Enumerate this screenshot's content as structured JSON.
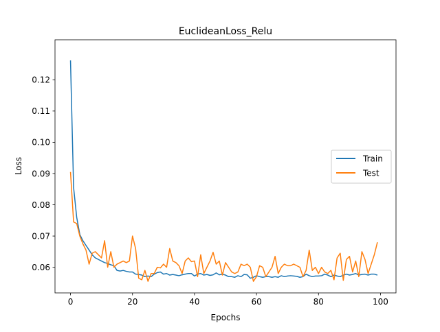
{
  "chart_data": {
    "type": "line",
    "title": "EuclideanLoss_Relu",
    "xlabel": "Epochs",
    "ylabel": "Loss",
    "xlim": [
      -5,
      105
    ],
    "ylim": [
      0.0518,
      0.1328
    ],
    "xticks": [
      0,
      20,
      40,
      60,
      80,
      100
    ],
    "yticks": [
      0.06,
      0.07,
      0.08,
      0.09,
      0.1,
      0.11,
      0.12
    ],
    "ytick_labels": [
      "0.06",
      "0.07",
      "0.08",
      "0.09",
      "0.10",
      "0.11",
      "0.12"
    ],
    "grid": false,
    "legend": {
      "position": "center-right"
    },
    "series": [
      {
        "name": "Train",
        "color": "#1f77b4",
        "values": [
          0.1262,
          0.0855,
          0.076,
          0.0705,
          0.0685,
          0.067,
          0.0655,
          0.064,
          0.063,
          0.0625,
          0.062,
          0.0615,
          0.0612,
          0.0608,
          0.0605,
          0.059,
          0.0588,
          0.059,
          0.0587,
          0.0585,
          0.0585,
          0.0578,
          0.0577,
          0.0575,
          0.057,
          0.0572,
          0.057,
          0.0578,
          0.0583,
          0.0585,
          0.0578,
          0.058,
          0.0575,
          0.0577,
          0.0575,
          0.0573,
          0.0576,
          0.0578,
          0.058,
          0.058,
          0.0572,
          0.0578,
          0.058,
          0.0575,
          0.0577,
          0.0574,
          0.0576,
          0.0582,
          0.0576,
          0.0578,
          0.0575,
          0.057,
          0.057,
          0.0568,
          0.0573,
          0.057,
          0.0577,
          0.0576,
          0.0565,
          0.0568,
          0.0573,
          0.057,
          0.0568,
          0.057,
          0.057,
          0.0568,
          0.057,
          0.0568,
          0.0573,
          0.057,
          0.0572,
          0.0573,
          0.0572,
          0.0571,
          0.0568,
          0.057,
          0.0578,
          0.0573,
          0.057,
          0.0572,
          0.0572,
          0.0573,
          0.0578,
          0.0575,
          0.057,
          0.0575,
          0.0572,
          0.057,
          0.0575,
          0.0578,
          0.0575,
          0.0577,
          0.058,
          0.0575,
          0.0577,
          0.0578,
          0.0575,
          0.0578,
          0.0578,
          0.0575
        ]
      },
      {
        "name": "Test",
        "color": "#ff7f0e",
        "values": [
          0.0905,
          0.0745,
          0.074,
          0.07,
          0.0675,
          0.0655,
          0.061,
          0.0645,
          0.065,
          0.064,
          0.063,
          0.0685,
          0.06,
          0.065,
          0.06,
          0.061,
          0.0615,
          0.062,
          0.0615,
          0.062,
          0.07,
          0.066,
          0.0565,
          0.056,
          0.059,
          0.0555,
          0.058,
          0.058,
          0.06,
          0.0598,
          0.061,
          0.06,
          0.066,
          0.062,
          0.0615,
          0.0605,
          0.058,
          0.062,
          0.063,
          0.0618,
          0.062,
          0.057,
          0.064,
          0.058,
          0.06,
          0.062,
          0.0648,
          0.061,
          0.062,
          0.0575,
          0.0615,
          0.06,
          0.0585,
          0.058,
          0.0585,
          0.061,
          0.0605,
          0.061,
          0.06,
          0.0555,
          0.057,
          0.0605,
          0.06,
          0.057,
          0.0585,
          0.06,
          0.0635,
          0.058,
          0.06,
          0.061,
          0.0605,
          0.0605,
          0.061,
          0.0605,
          0.06,
          0.057,
          0.059,
          0.0655,
          0.059,
          0.06,
          0.058,
          0.06,
          0.0585,
          0.058,
          0.059,
          0.056,
          0.063,
          0.0645,
          0.0558,
          0.0625,
          0.0635,
          0.0585,
          0.062,
          0.057,
          0.065,
          0.0625,
          0.058,
          0.061,
          0.064,
          0.068
        ]
      }
    ]
  }
}
